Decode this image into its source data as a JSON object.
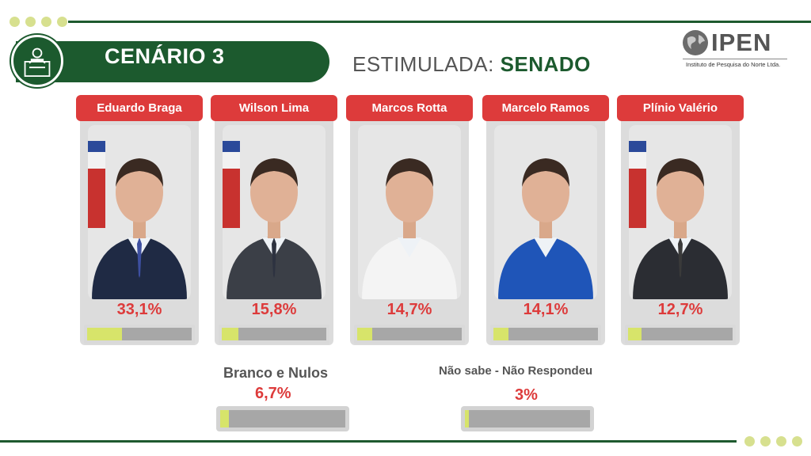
{
  "header": {
    "scenario": "CENÁRIO 3",
    "subtitle_prefix": "ESTIMULADA: ",
    "subtitle_emphasis": "SENADO"
  },
  "logo": {
    "name": "IPEN",
    "tagline": "Instituto de Pesquisa do Norte Ltda."
  },
  "candidates": [
    {
      "name": "Eduardo Braga",
      "percent_text": "33,1%",
      "percent": 33.1,
      "flag": true,
      "suit": "#1f2a44",
      "tie": "#3d4fa0"
    },
    {
      "name": "Wilson Lima",
      "percent_text": "15,8%",
      "percent": 15.8,
      "flag": true,
      "suit": "#3b3f47",
      "tie": "#2d3240"
    },
    {
      "name": "Marcos Rotta",
      "percent_text": "14,7%",
      "percent": 14.7,
      "flag": false,
      "suit": "#f4f4f4",
      "tie": ""
    },
    {
      "name": "Marcelo Ramos",
      "percent_text": "14,1%",
      "percent": 14.1,
      "flag": false,
      "suit": "#1f55b8",
      "tie": ""
    },
    {
      "name": "Plínio Valério",
      "percent_text": "12,7%",
      "percent": 12.7,
      "flag": true,
      "suit": "#2b2d33",
      "tie": "#3a3a3a"
    }
  ],
  "others": [
    {
      "label": "Branco e Nulos",
      "percent_text": "6,7%",
      "percent": 6.7
    },
    {
      "label": "Não sabe - Não Respondeu",
      "percent_text": "3%",
      "percent": 3
    }
  ],
  "colors": {
    "brand_green": "#1c5a2e",
    "accent_red": "#dd3b3b",
    "bar_fill": "#d7e46a",
    "bar_track": "#a7a7a7",
    "dots": "#d7e08f"
  }
}
